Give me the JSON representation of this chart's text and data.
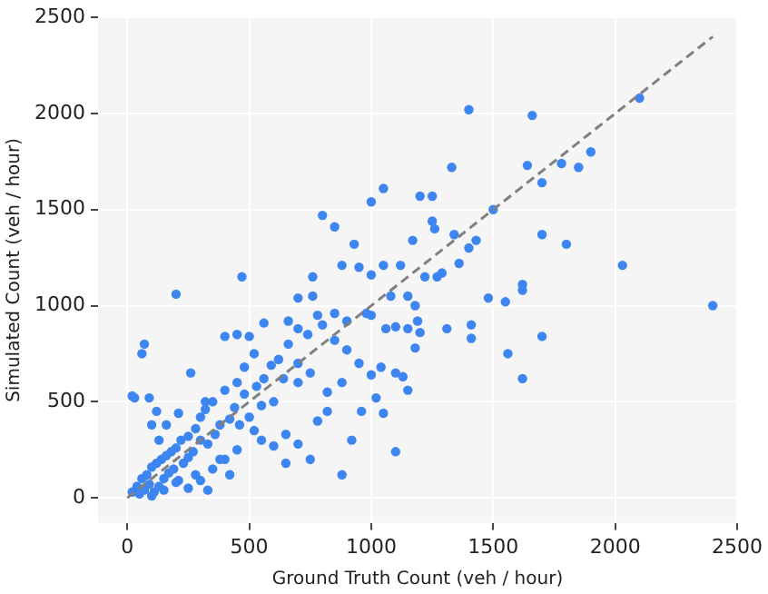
{
  "chart_data": {
    "type": "scatter",
    "xlabel": "Ground Truth Count (veh / hour)",
    "ylabel": "Simulated Count (veh / hour)",
    "xlim": [
      -120,
      2500
    ],
    "ylim": [
      -130,
      2500
    ],
    "xticks": [
      0,
      500,
      1000,
      1500,
      2000,
      2500
    ],
    "yticks": [
      0,
      500,
      1000,
      1500,
      2000,
      2500
    ],
    "grid": true,
    "legend": false,
    "series": [
      {
        "type": "scatter",
        "color": "#3d85f0",
        "marker": "circle",
        "x": [
          1400,
          1660,
          2100,
          1330,
          1050,
          1250,
          1200,
          1640,
          1780,
          1900,
          1850,
          1700,
          1500,
          1700,
          1800,
          2030,
          1620,
          1480,
          1550,
          1620,
          1360,
          1250,
          1260,
          1340,
          1400,
          1430,
          1290,
          1170,
          1000,
          950,
          930,
          1050,
          1000,
          800,
          850,
          2400,
          1700,
          1560,
          1620,
          1410,
          1410,
          1310,
          1270,
          1220,
          1120,
          880,
          760,
          470,
          200,
          760,
          700,
          660,
          560,
          500,
          450,
          400,
          60,
          70,
          1100,
          1150,
          1180,
          1190,
          1200,
          1060,
          1040,
          1100,
          1150,
          1050,
          1000,
          950,
          900,
          850,
          800,
          780,
          740,
          700,
          660,
          620,
          590,
          560,
          530,
          480,
          450,
          400,
          350,
          320,
          300,
          280,
          250,
          220,
          200,
          180,
          160,
          140,
          120,
          100,
          80,
          60,
          40,
          20,
          50,
          70,
          90,
          110,
          130,
          150,
          170,
          190,
          210,
          230,
          250,
          270,
          300,
          330,
          360,
          380,
          420,
          440,
          460,
          500,
          520,
          550,
          600,
          650,
          700,
          750,
          780,
          820,
          880,
          920,
          960,
          1020,
          1100,
          1130,
          1180,
          650,
          600,
          700,
          750,
          820,
          880,
          300,
          250,
          200,
          150,
          100,
          350,
          400,
          450,
          550,
          480,
          520,
          640,
          260,
          20,
          30,
          210,
          160,
          100,
          130,
          320,
          380,
          420,
          280,
          330,
          120,
          90,
          900,
          980,
          850,
          700,
          1000,
          1080,
          1150
        ],
        "values": [
          2020,
          1990,
          2080,
          1720,
          1610,
          1570,
          1570,
          1730,
          1740,
          1800,
          1720,
          1640,
          1500,
          1370,
          1320,
          1210,
          1110,
          1040,
          1020,
          1080,
          1220,
          1440,
          1400,
          1370,
          1300,
          1340,
          1170,
          1340,
          1540,
          1200,
          1320,
          1210,
          1160,
          1470,
          1410,
          1000,
          840,
          750,
          620,
          900,
          830,
          880,
          1150,
          1150,
          1210,
          1210,
          1150,
          1150,
          1060,
          1050,
          1040,
          920,
          910,
          840,
          850,
          840,
          750,
          800,
          890,
          880,
          1000,
          920,
          860,
          880,
          680,
          650,
          560,
          440,
          640,
          700,
          770,
          820,
          900,
          950,
          850,
          880,
          800,
          720,
          690,
          620,
          580,
          540,
          600,
          560,
          500,
          460,
          420,
          360,
          320,
          300,
          260,
          240,
          220,
          200,
          180,
          160,
          120,
          100,
          60,
          30,
          20,
          40,
          70,
          30,
          60,
          100,
          130,
          150,
          90,
          180,
          210,
          240,
          300,
          280,
          330,
          380,
          410,
          470,
          380,
          420,
          350,
          300,
          270,
          330,
          280,
          200,
          400,
          450,
          120,
          300,
          450,
          520,
          240,
          630,
          780,
          180,
          500,
          600,
          650,
          550,
          600,
          90,
          50,
          80,
          40,
          10,
          150,
          200,
          250,
          480,
          680,
          750,
          620,
          650,
          530,
          520,
          440,
          380,
          380,
          300,
          500,
          200,
          120,
          120,
          40,
          450,
          520,
          920,
          960,
          960,
          700,
          950,
          1050,
          1050
        ]
      },
      {
        "type": "line",
        "color": "#808080",
        "marker": "none",
        "line_style": "dashed",
        "x": [
          0,
          2400
        ],
        "values": [
          0,
          2400
        ]
      }
    ]
  }
}
